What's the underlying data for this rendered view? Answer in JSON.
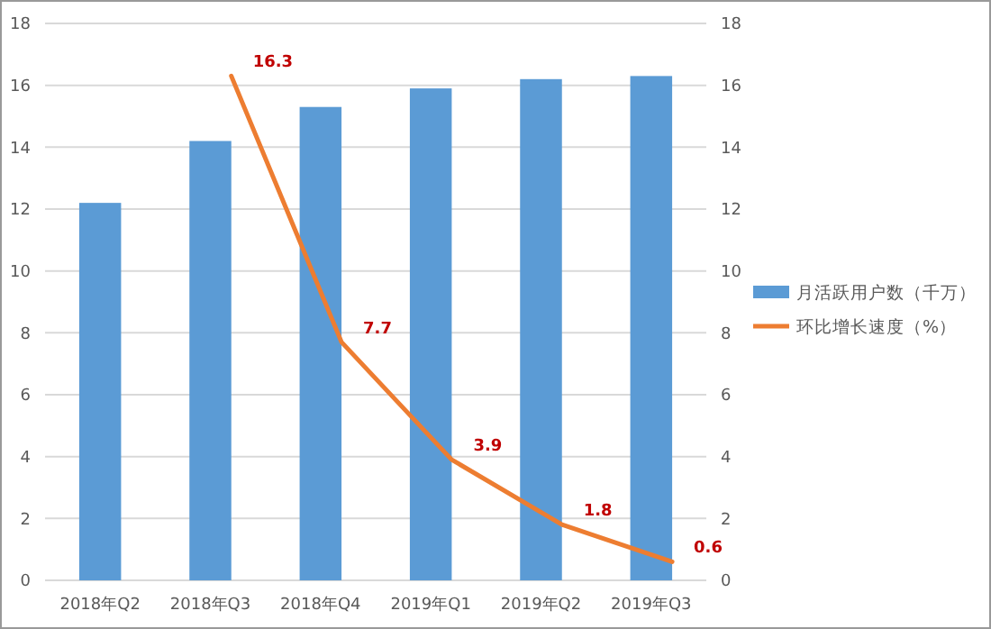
{
  "chart_data": {
    "type": "bar",
    "categories": [
      "2018年Q2",
      "2018年Q3",
      "2018年Q4",
      "2019年Q1",
      "2019年Q2",
      "2019年Q3"
    ],
    "series": [
      {
        "name": "月活跃用户数（千万）",
        "color": "#5b9bd5",
        "values": [
          12.2,
          14.2,
          15.3,
          15.9,
          16.2,
          16.3
        ]
      },
      {
        "name": "环比增长速度（%）",
        "type": "line",
        "axis": "y2",
        "color": "#ed7d31",
        "values": [
          null,
          16.3,
          7.7,
          3.9,
          1.8,
          0.6
        ],
        "data_labels": true
      }
    ],
    "ylim": [
      0,
      18
    ],
    "yticks": [
      0,
      2,
      4,
      6,
      8,
      10,
      12,
      14,
      16,
      18
    ],
    "y2lim": [
      0,
      18
    ],
    "y2ticks": [
      0,
      2,
      4,
      6,
      8,
      10,
      12,
      14,
      16,
      18
    ],
    "grid": "y",
    "legend": "right"
  }
}
